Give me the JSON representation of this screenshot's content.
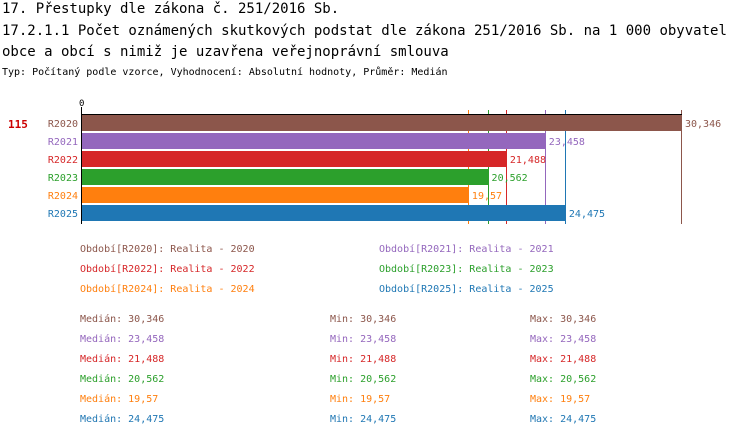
{
  "header": {
    "title": "17. Přestupky dle zákona č. 251/2016 Sb.",
    "subtitle": "17.2.1.1 Počet oznámených skutkových podstat dle zákona 251/2016 Sb. na 1 000 obyvatel obce a obcí s nimiž je uzavřena veřejnoprávní smlouva",
    "type_line": "Typ: Počítaný podle vzorce, Vyhodnocení: Absolutní hodnoty, Průměr: Medián"
  },
  "chart_data": {
    "type": "bar",
    "orientation": "horizontal",
    "rank_label": "115",
    "axis_zero_label": "0",
    "xlim": [
      0,
      30.346
    ],
    "categories": [
      "R2020",
      "R2021",
      "R2022",
      "R2023",
      "R2024",
      "R2025"
    ],
    "values": [
      30.346,
      23.458,
      21.488,
      20.562,
      19.57,
      24.475
    ],
    "value_labels": [
      "30,346",
      "23,458",
      "21,488",
      "20,562",
      "19,57",
      "24,475"
    ],
    "colors": [
      "#8c564b",
      "#9467bd",
      "#d62728",
      "#2ca02c",
      "#ff7f0e",
      "#1f77b4"
    ],
    "legend": [
      "Období[R2020]: Realita - 2020",
      "Období[R2021]: Realita - 2021",
      "Období[R2022]: Realita - 2022",
      "Období[R2023]: Realita - 2023",
      "Období[R2024]: Realita - 2024",
      "Období[R2025]: Realita - 2025"
    ],
    "stats": [
      {
        "median": "Medián: 30,346",
        "min": "Min: 30,346",
        "max": "Max: 30,346"
      },
      {
        "median": "Medián: 23,458",
        "min": "Min: 23,458",
        "max": "Max: 23,458"
      },
      {
        "median": "Medián: 21,488",
        "min": "Min: 21,488",
        "max": "Max: 21,488"
      },
      {
        "median": "Medián: 20,562",
        "min": "Min: 20,562",
        "max": "Max: 20,562"
      },
      {
        "median": "Medián: 19,57",
        "min": "Min: 19,57",
        "max": "Max: 19,57"
      },
      {
        "median": "Medián: 24,475",
        "min": "Min: 24,475",
        "max": "Max: 24,475"
      }
    ]
  }
}
